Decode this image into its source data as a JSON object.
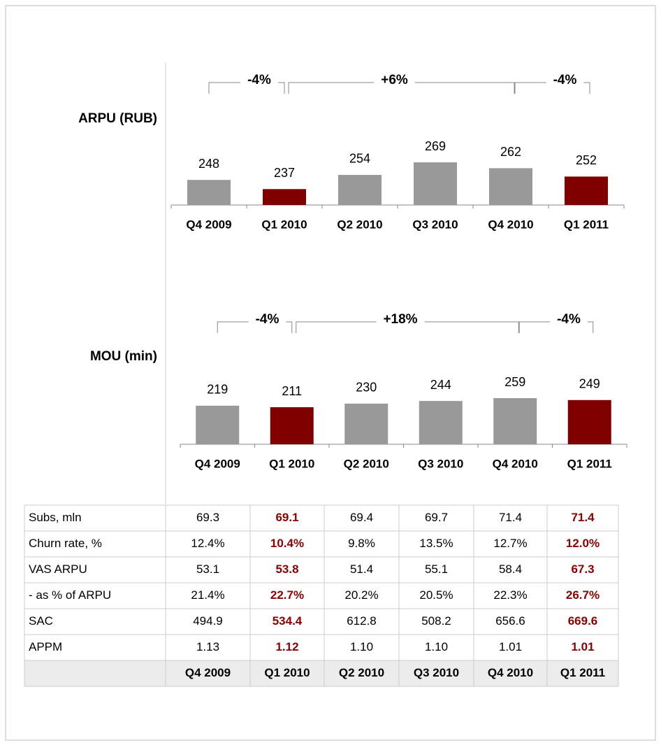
{
  "chart_data": [
    {
      "type": "bar",
      "title": "ARPU (RUB)",
      "categories": [
        "Q4 2009",
        "Q1 2010",
        "Q2 2010",
        "Q3 2010",
        "Q4 2010",
        "Q1 2011"
      ],
      "values": [
        248,
        237,
        254,
        269,
        262,
        252
      ],
      "colors": [
        "#999999",
        "#800000",
        "#999999",
        "#999999",
        "#999999",
        "#800000"
      ],
      "ylim": [
        218,
        300
      ],
      "annotations": [
        "-4%",
        "+6%",
        "-4%"
      ]
    },
    {
      "type": "bar",
      "title": "MOU (min)",
      "categories": [
        "Q4 2009",
        "Q1 2010",
        "Q2 2010",
        "Q3 2010",
        "Q4 2010",
        "Q1 2011"
      ],
      "values": [
        219,
        211,
        230,
        244,
        259,
        249
      ],
      "colors": [
        "#999999",
        "#800000",
        "#999999",
        "#999999",
        "#999999",
        "#800000"
      ],
      "ylim": [
        15,
        300
      ],
      "annotations": [
        "-4%",
        "+18%",
        "-4%"
      ]
    }
  ],
  "table": {
    "rows": [
      [
        "Subs, mln",
        "69.3",
        "69.1",
        "69.4",
        "69.7",
        "71.4",
        "71.4"
      ],
      [
        "Churn rate, %",
        "12.4%",
        "10.4%",
        "9.8%",
        "13.5%",
        "12.7%",
        "12.0%"
      ],
      [
        "VAS ARPU",
        "53.1",
        "53.8",
        "51.4",
        "55.1",
        "58.4",
        "67.3"
      ],
      [
        "- as % of ARPU",
        "21.4%",
        "22.7%",
        "20.2%",
        "20.5%",
        "22.3%",
        "26.7%"
      ],
      [
        "SAC",
        "494.9",
        "534.4",
        "612.8",
        "508.2",
        "656.6",
        "669.6"
      ],
      [
        "APPM",
        "1.13",
        "1.12",
        "1.10",
        "1.10",
        "1.01",
        "1.01"
      ]
    ],
    "columns": [
      "Q4 2009",
      "Q1 2010",
      "Q2 2010",
      "Q3 2010",
      "Q4 2010",
      "Q1 2011"
    ]
  }
}
